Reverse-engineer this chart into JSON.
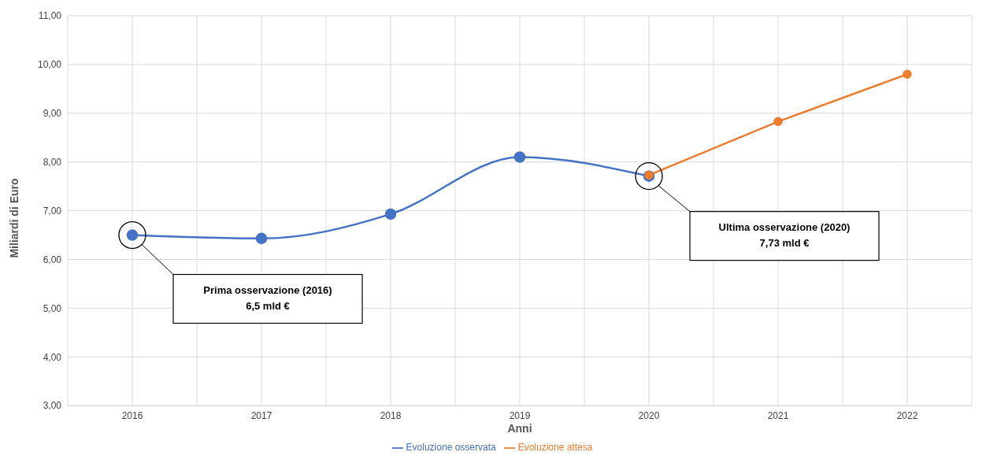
{
  "chart_data": {
    "type": "line",
    "xlabel": "Anni",
    "ylabel": "Miliardi di Euro",
    "categories": [
      "2016",
      "2017",
      "2018",
      "2019",
      "2020",
      "2021",
      "2022"
    ],
    "series": [
      {
        "name": "Evoluzione osservata",
        "color": "#4472c4",
        "values": [
          6.5,
          6.43,
          6.93,
          8.1,
          7.71,
          null,
          null
        ]
      },
      {
        "name": "Evoluzione attesa",
        "color": "#ed7d31",
        "values": [
          null,
          null,
          null,
          null,
          7.73,
          8.83,
          9.8
        ]
      }
    ],
    "ylim": [
      3,
      11
    ],
    "yticks": [
      {
        "value": 3,
        "label": "3,00"
      },
      {
        "value": 4,
        "label": "4,00"
      },
      {
        "value": 5,
        "label": "5,00"
      },
      {
        "value": 6,
        "label": "6,00"
      },
      {
        "value": 7,
        "label": "7,00"
      },
      {
        "value": 8,
        "label": "8,00"
      },
      {
        "value": 9,
        "label": "9,00"
      },
      {
        "value": 10,
        "label": "10,00"
      },
      {
        "value": 11,
        "label": "11,00"
      }
    ],
    "annotations": [
      "Prima osservazione (2016)\n6,5 mld €",
      "Ultima osservazione (2020)\n7,73 mld €"
    ],
    "grid": true,
    "legend": "bottom",
    "marker": "circle",
    "line_style": "solid"
  }
}
